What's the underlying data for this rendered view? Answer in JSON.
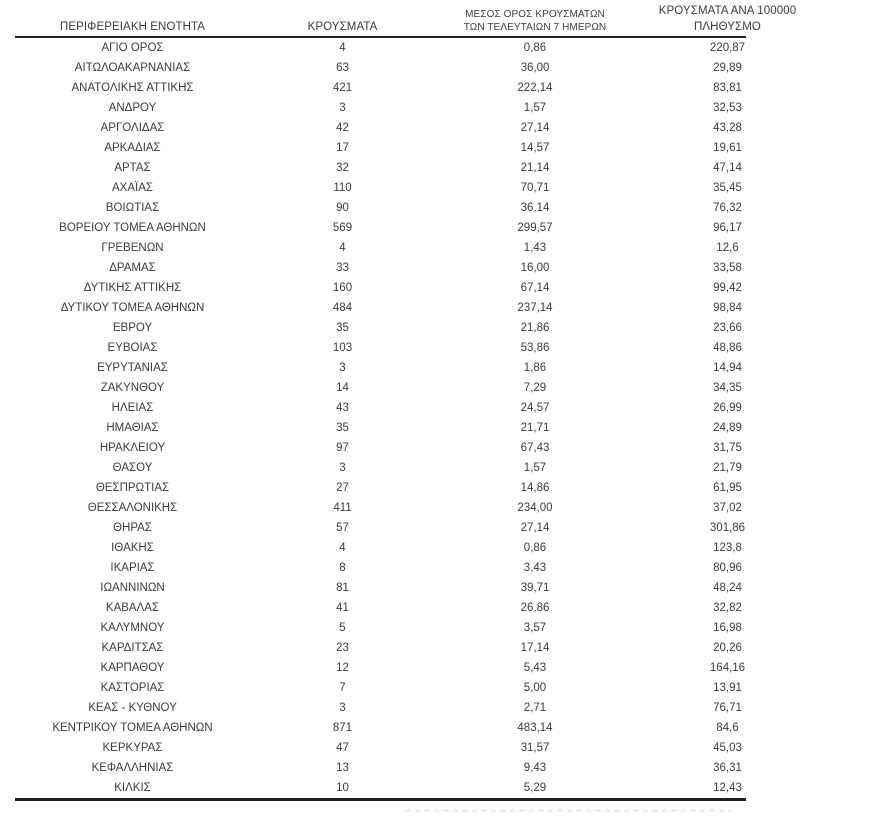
{
  "colors": {
    "background": "#ffffff",
    "text": "#3c3c3c",
    "rule": "#1f1f1f"
  },
  "table": {
    "columns": [
      {
        "label": "ΠΕΡΙΦΕΡΕΙΑΚΗ ΕΝΟΤΗΤΑ"
      },
      {
        "label": "ΚΡΟΥΣΜΑΤΑ"
      },
      {
        "label_line1": "ΜΕΣΟΣ ΟΡΟΣ ΚΡΟΥΣΜΑΤΩΝ",
        "label_line2": "ΤΩΝ ΤΕΛΕΥΤΑΙΩΝ 7 ΗΜΕΡΩΝ"
      },
      {
        "label_line1": "ΚΡΟΥΣΜΑΤΑ ΑΝΑ 100000",
        "label_line2": "ΠΛΗΘΥΣΜΟ"
      }
    ],
    "rows": [
      [
        "ΑΓΙΟ ΟΡΟΣ",
        "4",
        "0,86",
        "220,87"
      ],
      [
        "ΑΙΤΩΛΟΑΚΑΡΝΑΝΙΑΣ",
        "63",
        "36,00",
        "29,89"
      ],
      [
        "ΑΝΑΤΟΛΙΚΗΣ ΑΤΤΙΚΗΣ",
        "421",
        "222,14",
        "83,81"
      ],
      [
        "ΑΝΔΡΟΥ",
        "3",
        "1,57",
        "32,53"
      ],
      [
        "ΑΡΓΟΛΙΔΑΣ",
        "42",
        "27,14",
        "43,28"
      ],
      [
        "ΑΡΚΑΔΙΑΣ",
        "17",
        "14,57",
        "19,61"
      ],
      [
        "ΑΡΤΑΣ",
        "32",
        "21,14",
        "47,14"
      ],
      [
        "ΑΧΑΪΑΣ",
        "110",
        "70,71",
        "35,45"
      ],
      [
        "ΒΟΙΩΤΙΑΣ",
        "90",
        "36,14",
        "76,32"
      ],
      [
        "ΒΟΡΕΙΟΥ ΤΟΜΕΑ ΑΘΗΝΩΝ",
        "569",
        "299,57",
        "96,17"
      ],
      [
        "ΓΡΕΒΕΝΩΝ",
        "4",
        "1,43",
        "12,6"
      ],
      [
        "ΔΡΑΜΑΣ",
        "33",
        "16,00",
        "33,58"
      ],
      [
        "ΔΥΤΙΚΗΣ ΑΤΤΙΚΗΣ",
        "160",
        "67,14",
        "99,42"
      ],
      [
        "ΔΥΤΙΚΟΥ ΤΟΜΕΑ ΑΘΗΝΩΝ",
        "484",
        "237,14",
        "98,84"
      ],
      [
        "ΕΒΡΟΥ",
        "35",
        "21,86",
        "23,66"
      ],
      [
        "ΕΥΒΟΙΑΣ",
        "103",
        "53,86",
        "48,86"
      ],
      [
        "ΕΥΡΥΤΑΝΙΑΣ",
        "3",
        "1,86",
        "14,94"
      ],
      [
        "ΖΑΚΥΝΘΟΥ",
        "14",
        "7,29",
        "34,35"
      ],
      [
        "ΗΛΕΙΑΣ",
        "43",
        "24,57",
        "26,99"
      ],
      [
        "ΗΜΑΘΙΑΣ",
        "35",
        "21,71",
        "24,89"
      ],
      [
        "ΗΡΑΚΛΕΙΟΥ",
        "97",
        "67,43",
        "31,75"
      ],
      [
        "ΘΑΣΟΥ",
        "3",
        "1,57",
        "21,79"
      ],
      [
        "ΘΕΣΠΡΩΤΙΑΣ",
        "27",
        "14,86",
        "61,95"
      ],
      [
        "ΘΕΣΣΑΛΟΝΙΚΗΣ",
        "411",
        "234,00",
        "37,02"
      ],
      [
        "ΘΗΡΑΣ",
        "57",
        "27,14",
        "301,86"
      ],
      [
        "ΙΘΑΚΗΣ",
        "4",
        "0,86",
        "123,8"
      ],
      [
        "ΙΚΑΡΙΑΣ",
        "8",
        "3,43",
        "80,96"
      ],
      [
        "ΙΩΑΝΝΙΝΩΝ",
        "81",
        "39,71",
        "48,24"
      ],
      [
        "ΚΑΒΑΛΑΣ",
        "41",
        "26,86",
        "32,82"
      ],
      [
        "ΚΑΛΥΜΝΟΥ",
        "5",
        "3,57",
        "16,98"
      ],
      [
        "ΚΑΡΔΙΤΣΑΣ",
        "23",
        "17,14",
        "20,26"
      ],
      [
        "ΚΑΡΠΑΘΟΥ",
        "12",
        "5,43",
        "164,16"
      ],
      [
        "ΚΑΣΤΟΡΙΑΣ",
        "7",
        "5,00",
        "13,91"
      ],
      [
        "ΚΕΑΣ - ΚΥΘΝΟΥ",
        "3",
        "2,71",
        "76,71"
      ],
      [
        "ΚΕΝΤΡΙΚΟΥ ΤΟΜΕΑ ΑΘΗΝΩΝ",
        "871",
        "483,14",
        "84,6"
      ],
      [
        "ΚΕΡΚΥΡΑΣ",
        "47",
        "31,57",
        "45,03"
      ],
      [
        "ΚΕΦΑΛΛΗΝΙΑΣ",
        "13",
        "9,43",
        "36,31"
      ],
      [
        "ΚΙΛΚΙΣ",
        "10",
        "5,29",
        "12,43"
      ]
    ]
  }
}
